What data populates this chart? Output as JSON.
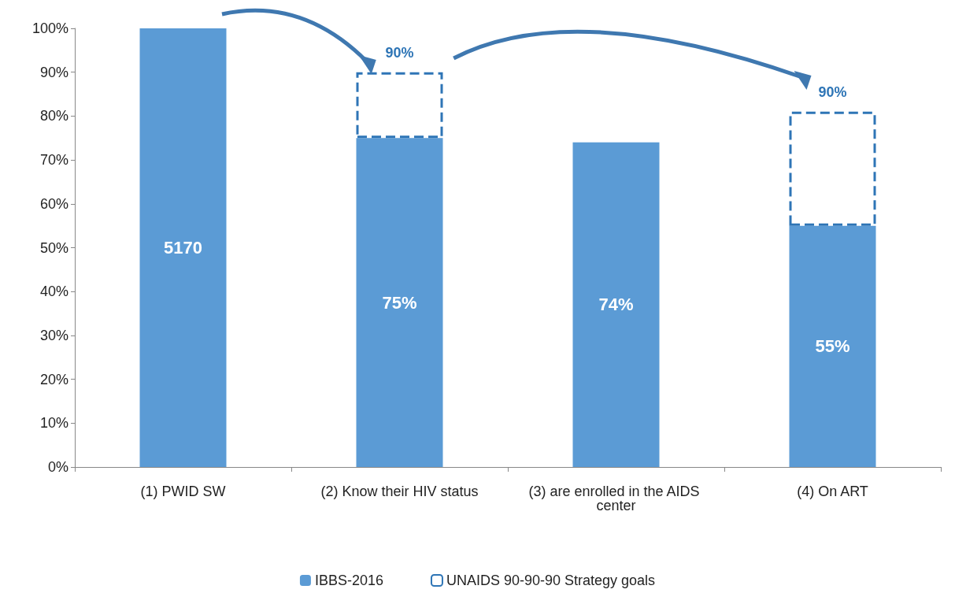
{
  "chart_data": {
    "type": "bar",
    "categories": [
      "(1) PWID SW",
      "(2) Know their HIV status",
      "(3) are enrolled in the AIDS center",
      "(4) On ART"
    ],
    "stacked": true,
    "series": [
      {
        "name": "IBBS-2016",
        "color": "#5b9bd5",
        "values": [
          100,
          75,
          74,
          55
        ],
        "value_labels": [
          null,
          "75%",
          "74%",
          "55%"
        ]
      },
      {
        "name": "UNAIDS 90-90-90 Strategy goals",
        "color": "#2e75b6",
        "line_style": "dashed",
        "values": [
          null,
          15,
          null,
          26
        ]
      }
    ],
    "annotations": [
      "5170",
      {
        "text": "90%",
        "x": "(2) Know their HIV status",
        "y": 90
      },
      {
        "text": "90%",
        "x": "(4) On ART",
        "y": 81
      }
    ],
    "ylim": [
      0,
      100
    ],
    "yticks": [
      {
        "value": 0,
        "label": "0%"
      },
      {
        "value": 10,
        "label": "10%"
      },
      {
        "value": 20,
        "label": "20%"
      },
      {
        "value": 30,
        "label": "30%"
      },
      {
        "value": 40,
        "label": "40%"
      },
      {
        "value": 50,
        "label": "50%"
      },
      {
        "value": 60,
        "label": "60%"
      },
      {
        "value": 70,
        "label": "70%"
      },
      {
        "value": 80,
        "label": "80%"
      },
      {
        "value": 90,
        "label": "90%"
      },
      {
        "value": 100,
        "label": "100%"
      }
    ],
    "grid": false,
    "legend": "bottom"
  }
}
